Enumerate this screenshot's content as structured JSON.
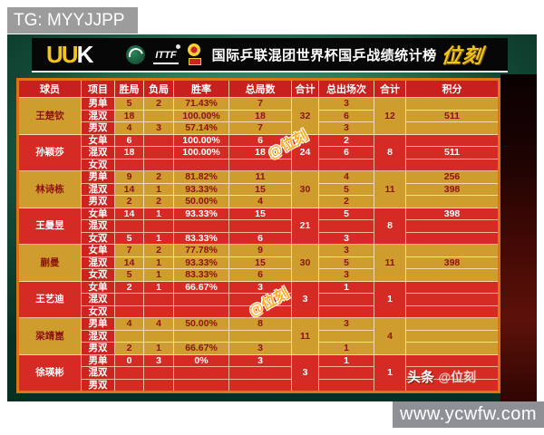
{
  "page": {
    "tg_label": "TG: MYYJJPP",
    "website": "www.ycwfw.com"
  },
  "header": {
    "logo_left": "UU",
    "logo_right": "K",
    "ittf_text": "ITTF",
    "title": "国际乒联混团世界杯国乒战绩统计榜",
    "brand": "位刻"
  },
  "watermarks": {
    "w1": "@位刻",
    "w2": "@位刻",
    "w3_bold": "头条",
    "w3_light": "@位刻"
  },
  "colors": {
    "gold_row": "#cf9d2e",
    "red_row": "#d62b24",
    "header_red": "#c8201c",
    "brand_yellow": "#f2c21d",
    "teal_background": "#2b7b61",
    "table_border_orange": "#dd7417"
  },
  "chart_data": {
    "type": "table",
    "title": "国际乒联混团世界杯国乒战绩统计榜",
    "columns": [
      "球员",
      "项目",
      "胜局",
      "负局",
      "胜率",
      "总局数",
      "合计",
      "总出场次",
      "合计",
      "积分"
    ],
    "players": [
      {
        "name": "王楚钦",
        "theme": "gold",
        "games_total": "32",
        "appearances_total": "12",
        "rows": [
          {
            "event": "男单",
            "wins": "5",
            "losses": "2",
            "rate": "71.43%",
            "games": "7",
            "appearances": "3",
            "points": ""
          },
          {
            "event": "混双",
            "wins": "18",
            "losses": "",
            "rate": "100.00%",
            "games": "18",
            "appearances": "6",
            "points": "511"
          },
          {
            "event": "男双",
            "wins": "4",
            "losses": "3",
            "rate": "57.14%",
            "games": "7",
            "appearances": "3",
            "points": ""
          }
        ]
      },
      {
        "name": "孙颖莎",
        "theme": "red",
        "games_total": "24",
        "appearances_total": "8",
        "rows": [
          {
            "event": "女单",
            "wins": "6",
            "losses": "",
            "rate": "100.00%",
            "games": "6",
            "appearances": "2",
            "points": ""
          },
          {
            "event": "混双",
            "wins": "18",
            "losses": "",
            "rate": "100.00%",
            "games": "18",
            "appearances": "6",
            "points": "511"
          },
          {
            "event": "女双",
            "wins": "",
            "losses": "",
            "rate": "",
            "games": "",
            "appearances": "",
            "points": ""
          }
        ]
      },
      {
        "name": "林诗栋",
        "theme": "gold",
        "games_total": "30",
        "appearances_total": "11",
        "rows": [
          {
            "event": "男单",
            "wins": "9",
            "losses": "2",
            "rate": "81.82%",
            "games": "11",
            "appearances": "4",
            "points": "256"
          },
          {
            "event": "混双",
            "wins": "14",
            "losses": "1",
            "rate": "93.33%",
            "games": "15",
            "appearances": "5",
            "points": "398"
          },
          {
            "event": "男双",
            "wins": "2",
            "losses": "2",
            "rate": "50.00%",
            "games": "4",
            "appearances": "2",
            "points": ""
          }
        ]
      },
      {
        "name": "王曼昱",
        "theme": "red",
        "games_total": "21",
        "appearances_total": "8",
        "rows": [
          {
            "event": "女单",
            "wins": "14",
            "losses": "1",
            "rate": "93.33%",
            "games": "15",
            "appearances": "5",
            "points": "398"
          },
          {
            "event": "混双",
            "wins": "",
            "losses": "",
            "rate": "",
            "games": "",
            "appearances": "",
            "points": ""
          },
          {
            "event": "女双",
            "wins": "5",
            "losses": "1",
            "rate": "83.33%",
            "games": "6",
            "appearances": "3",
            "points": ""
          }
        ]
      },
      {
        "name": "蒯曼",
        "theme": "gold",
        "games_total": "30",
        "appearances_total": "11",
        "rows": [
          {
            "event": "女单",
            "wins": "7",
            "losses": "2",
            "rate": "77.78%",
            "games": "9",
            "appearances": "3",
            "points": ""
          },
          {
            "event": "混双",
            "wins": "14",
            "losses": "1",
            "rate": "93.33%",
            "games": "15",
            "appearances": "5",
            "points": "398"
          },
          {
            "event": "女双",
            "wins": "5",
            "losses": "1",
            "rate": "83.33%",
            "games": "6",
            "appearances": "3",
            "points": ""
          }
        ]
      },
      {
        "name": "王艺迪",
        "theme": "red",
        "games_total": "3",
        "appearances_total": "1",
        "rows": [
          {
            "event": "女单",
            "wins": "2",
            "losses": "1",
            "rate": "66.67%",
            "games": "3",
            "appearances": "1",
            "points": ""
          },
          {
            "event": "混双",
            "wins": "",
            "losses": "",
            "rate": "",
            "games": "",
            "appearances": "",
            "points": ""
          },
          {
            "event": "女双",
            "wins": "",
            "losses": "",
            "rate": "",
            "games": "",
            "appearances": "",
            "points": ""
          }
        ]
      },
      {
        "name": "梁靖崑",
        "theme": "gold",
        "games_total": "11",
        "appearances_total": "4",
        "rows": [
          {
            "event": "男单",
            "wins": "4",
            "losses": "4",
            "rate": "50.00%",
            "games": "8",
            "appearances": "3",
            "points": ""
          },
          {
            "event": "混双",
            "wins": "",
            "losses": "",
            "rate": "",
            "games": "",
            "appearances": "",
            "points": ""
          },
          {
            "event": "男双",
            "wins": "2",
            "losses": "1",
            "rate": "66.67%",
            "games": "3",
            "appearances": "1",
            "points": ""
          }
        ]
      },
      {
        "name": "徐瑛彬",
        "theme": "red",
        "games_total": "3",
        "appearances_total": "1",
        "rows": [
          {
            "event": "男单",
            "wins": "0",
            "losses": "3",
            "rate": "0%",
            "games": "3",
            "appearances": "1",
            "points": ""
          },
          {
            "event": "混双",
            "wins": "",
            "losses": "",
            "rate": "",
            "games": "",
            "appearances": "",
            "points": ""
          },
          {
            "event": "男双",
            "wins": "",
            "losses": "",
            "rate": "",
            "games": "",
            "appearances": "",
            "points": ""
          }
        ]
      }
    ]
  }
}
